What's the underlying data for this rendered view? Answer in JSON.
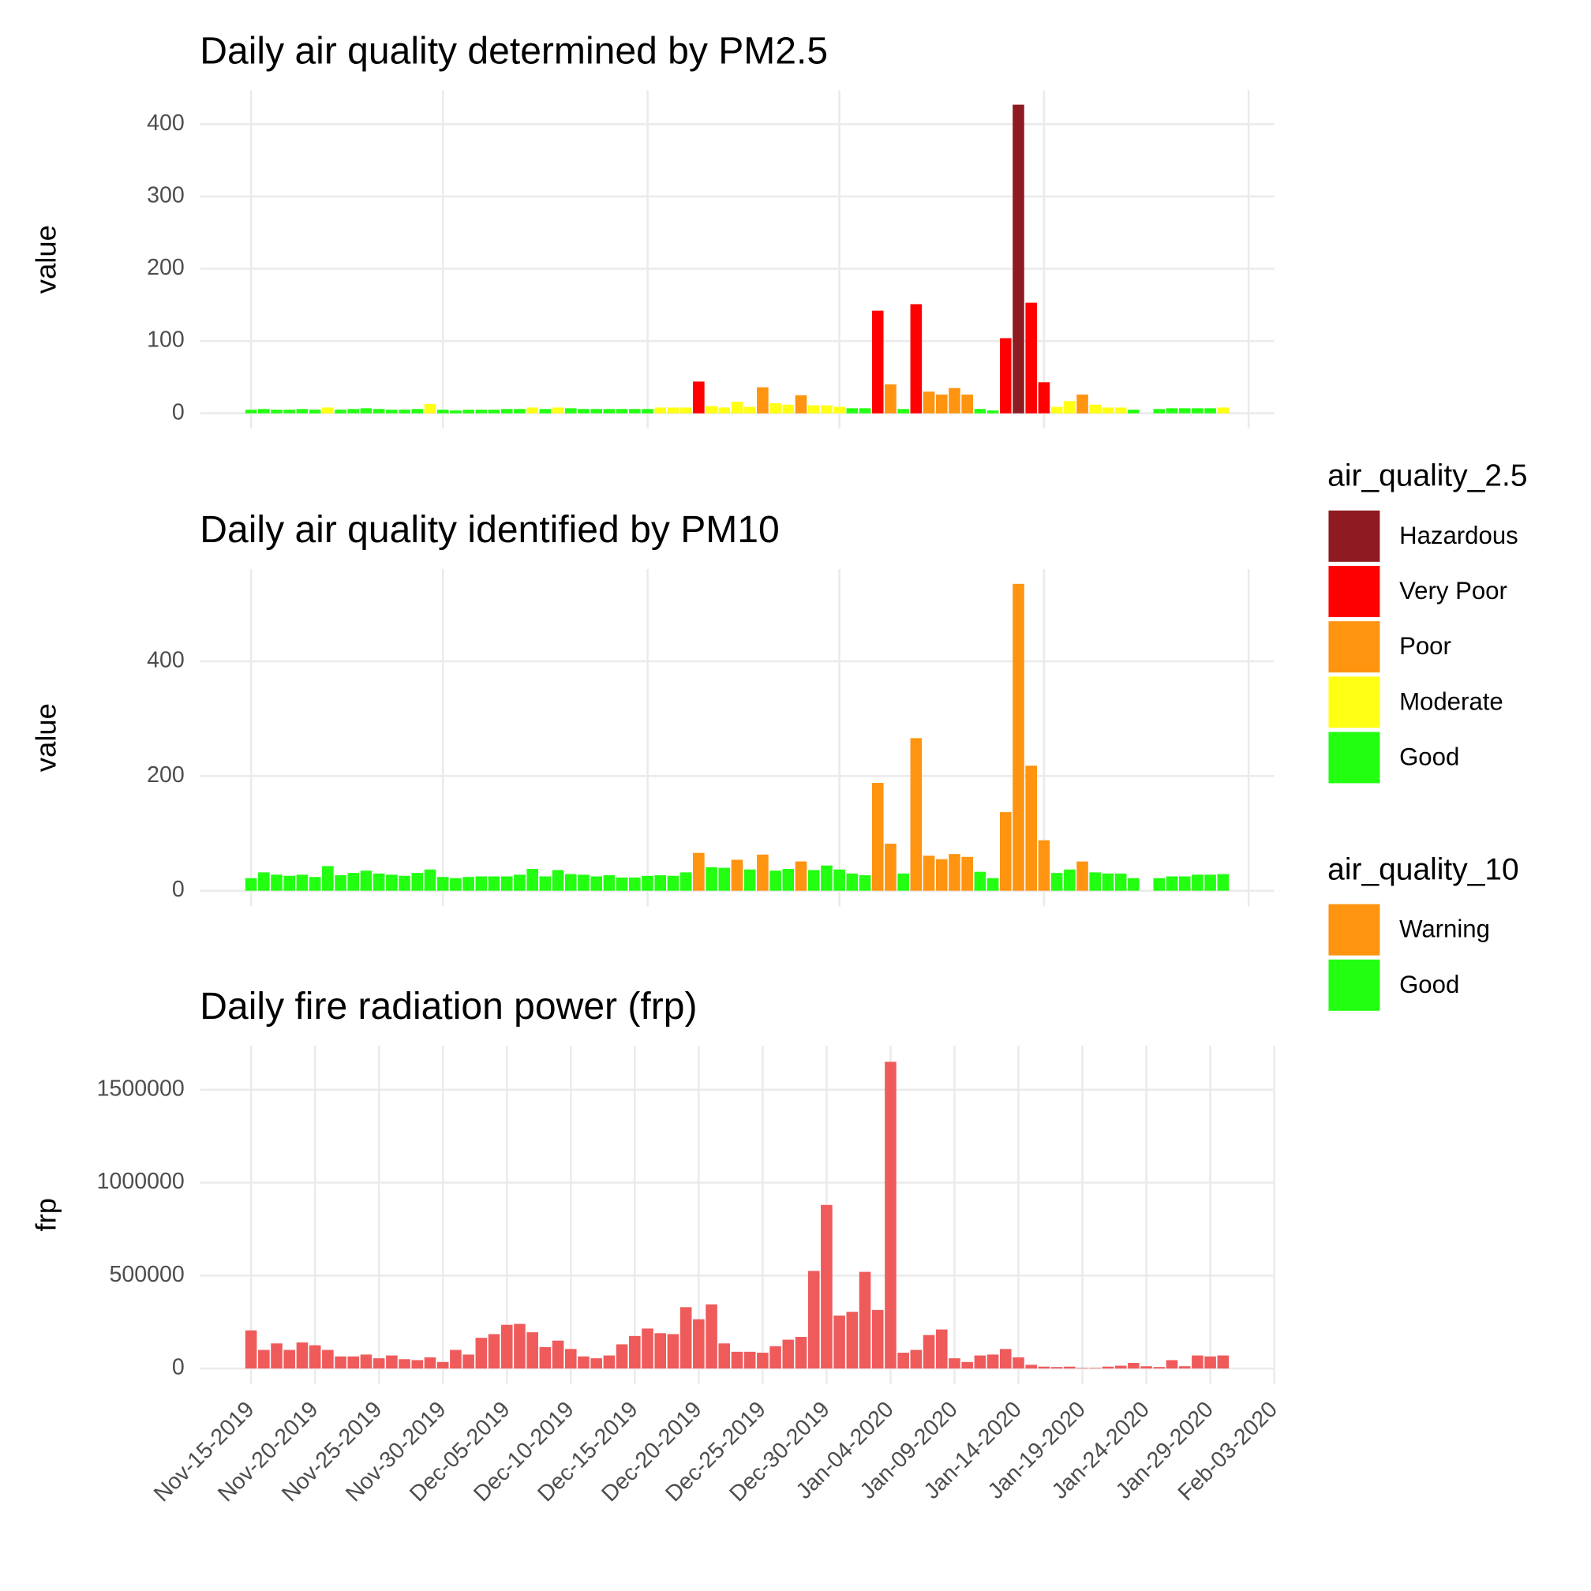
{
  "chart_data": [
    {
      "type": "bar",
      "title": "Daily air quality determined by PM2.5",
      "ylabel": "value",
      "x": [
        "2019-11-15",
        "2019-11-16",
        "2019-11-17",
        "2019-11-18",
        "2019-11-19",
        "2019-11-20",
        "2019-11-21",
        "2019-11-22",
        "2019-11-23",
        "2019-11-24",
        "2019-11-25",
        "2019-11-26",
        "2019-11-27",
        "2019-11-28",
        "2019-11-29",
        "2019-11-30",
        "2019-12-01",
        "2019-12-02",
        "2019-12-03",
        "2019-12-04",
        "2019-12-05",
        "2019-12-06",
        "2019-12-07",
        "2019-12-08",
        "2019-12-09",
        "2019-12-10",
        "2019-12-11",
        "2019-12-12",
        "2019-12-13",
        "2019-12-14",
        "2019-12-15",
        "2019-12-16",
        "2019-12-17",
        "2019-12-18",
        "2019-12-19",
        "2019-12-20",
        "2019-12-21",
        "2019-12-22",
        "2019-12-23",
        "2019-12-24",
        "2019-12-25",
        "2019-12-26",
        "2019-12-27",
        "2019-12-28",
        "2019-12-29",
        "2019-12-30",
        "2019-12-31",
        "2020-01-01",
        "2020-01-02",
        "2020-01-03",
        "2020-01-04",
        "2020-01-05",
        "2020-01-06",
        "2020-01-07",
        "2020-01-08",
        "2020-01-09",
        "2020-01-10",
        "2020-01-11",
        "2020-01-12",
        "2020-01-13",
        "2020-01-14",
        "2020-01-15",
        "2020-01-16",
        "2020-01-17",
        "2020-01-18",
        "2020-01-19",
        "2020-01-20",
        "2020-01-21",
        "2020-01-22",
        "2020-01-23",
        "2020-01-24",
        "2020-01-25",
        "2020-01-26",
        "2020-01-27",
        "2020-01-28",
        "2020-01-29",
        "2020-01-30"
      ],
      "values": [
        5,
        6,
        5,
        5,
        6,
        5,
        8,
        5,
        6,
        7,
        6,
        5,
        5,
        6,
        13,
        5,
        4,
        5,
        5,
        5,
        6,
        6,
        8,
        6,
        8,
        7,
        6,
        6,
        6,
        6,
        6,
        6,
        8,
        8,
        8,
        44,
        10,
        8,
        16,
        9,
        36,
        14,
        12,
        25,
        11,
        11,
        9,
        7,
        7,
        142,
        40,
        6,
        151,
        30,
        26,
        35,
        26,
        6,
        4,
        104,
        427,
        153,
        43,
        9,
        17,
        26,
        12,
        8,
        8,
        5,
        null,
        6,
        7,
        7,
        7,
        7,
        8
      ],
      "quality": [
        "Good",
        "Good",
        "Good",
        "Good",
        "Good",
        "Good",
        "Moderate",
        "Good",
        "Good",
        "Good",
        "Good",
        "Good",
        "Good",
        "Good",
        "Moderate",
        "Good",
        "Good",
        "Good",
        "Good",
        "Good",
        "Good",
        "Good",
        "Moderate",
        "Good",
        "Moderate",
        "Good",
        "Good",
        "Good",
        "Good",
        "Good",
        "Good",
        "Good",
        "Moderate",
        "Moderate",
        "Moderate",
        "Very Poor",
        "Moderate",
        "Moderate",
        "Moderate",
        "Moderate",
        "Poor",
        "Moderate",
        "Moderate",
        "Poor",
        "Moderate",
        "Moderate",
        "Moderate",
        "Good",
        "Good",
        "Very Poor",
        "Poor",
        "Good",
        "Very Poor",
        "Poor",
        "Poor",
        "Poor",
        "Poor",
        "Good",
        "Good",
        "Very Poor",
        "Hazardous",
        "Very Poor",
        "Very Poor",
        "Moderate",
        "Moderate",
        "Poor",
        "Moderate",
        "Moderate",
        "Moderate",
        "Good",
        null,
        "Good",
        "Good",
        "Good",
        "Good",
        "Good",
        "Moderate"
      ],
      "legend": {
        "title": "air_quality_2.5",
        "items": [
          {
            "name": "Hazardous",
            "color": "#8e1b22"
          },
          {
            "name": "Very Poor",
            "color": "#ff0000"
          },
          {
            "name": "Poor",
            "color": "#ff9410"
          },
          {
            "name": "Moderate",
            "color": "#ffff14"
          },
          {
            "name": "Good",
            "color": "#22ff11"
          }
        ]
      },
      "xlim": [
        "2019-11-11",
        "2020-02-03"
      ],
      "xticks": [
        "2019-11-15",
        "2019-11-30",
        "2019-12-16",
        "2019-12-31",
        "2020-01-16",
        "2020-02-01"
      ],
      "show_xtick_labels": false,
      "ylim": [
        -21,
        447
      ],
      "yticks": [
        0,
        100,
        200,
        300,
        400
      ],
      "grid": true
    },
    {
      "type": "bar",
      "title": "Daily air quality identified by PM10",
      "ylabel": "value",
      "x": [
        "2019-11-15",
        "2019-11-16",
        "2019-11-17",
        "2019-11-18",
        "2019-11-19",
        "2019-11-20",
        "2019-11-21",
        "2019-11-22",
        "2019-11-23",
        "2019-11-24",
        "2019-11-25",
        "2019-11-26",
        "2019-11-27",
        "2019-11-28",
        "2019-11-29",
        "2019-11-30",
        "2019-12-01",
        "2019-12-02",
        "2019-12-03",
        "2019-12-04",
        "2019-12-05",
        "2019-12-06",
        "2019-12-07",
        "2019-12-08",
        "2019-12-09",
        "2019-12-10",
        "2019-12-11",
        "2019-12-12",
        "2019-12-13",
        "2019-12-14",
        "2019-12-15",
        "2019-12-16",
        "2019-12-17",
        "2019-12-18",
        "2019-12-19",
        "2019-12-20",
        "2019-12-21",
        "2019-12-22",
        "2019-12-23",
        "2019-12-24",
        "2019-12-25",
        "2019-12-26",
        "2019-12-27",
        "2019-12-28",
        "2019-12-29",
        "2019-12-30",
        "2019-12-31",
        "2020-01-01",
        "2020-01-02",
        "2020-01-03",
        "2020-01-04",
        "2020-01-05",
        "2020-01-06",
        "2020-01-07",
        "2020-01-08",
        "2020-01-09",
        "2020-01-10",
        "2020-01-11",
        "2020-01-12",
        "2020-01-13",
        "2020-01-14",
        "2020-01-15",
        "2020-01-16",
        "2020-01-17",
        "2020-01-18",
        "2020-01-19",
        "2020-01-20",
        "2020-01-21",
        "2020-01-22",
        "2020-01-23",
        "2020-01-24",
        "2020-01-25",
        "2020-01-26",
        "2020-01-27",
        "2020-01-28",
        "2020-01-29",
        "2020-01-30"
      ],
      "values": [
        22,
        32,
        28,
        26,
        28,
        24,
        43,
        27,
        31,
        35,
        30,
        28,
        26,
        31,
        37,
        24,
        22,
        24,
        25,
        25,
        25,
        28,
        38,
        25,
        36,
        29,
        28,
        25,
        27,
        23,
        23,
        26,
        27,
        26,
        32,
        66,
        41,
        40,
        54,
        37,
        63,
        35,
        38,
        51,
        36,
        44,
        37,
        30,
        27,
        188,
        82,
        30,
        266,
        61,
        55,
        64,
        59,
        33,
        22,
        137,
        535,
        218,
        88,
        31,
        37,
        51,
        32,
        30,
        30,
        22,
        null,
        22,
        25,
        25,
        28,
        28,
        29
      ],
      "quality": [
        "Good",
        "Good",
        "Good",
        "Good",
        "Good",
        "Good",
        "Good",
        "Good",
        "Good",
        "Good",
        "Good",
        "Good",
        "Good",
        "Good",
        "Good",
        "Good",
        "Good",
        "Good",
        "Good",
        "Good",
        "Good",
        "Good",
        "Good",
        "Good",
        "Good",
        "Good",
        "Good",
        "Good",
        "Good",
        "Good",
        "Good",
        "Good",
        "Good",
        "Good",
        "Good",
        "Warning",
        "Good",
        "Good",
        "Warning",
        "Good",
        "Warning",
        "Good",
        "Good",
        "Warning",
        "Good",
        "Good",
        "Good",
        "Good",
        "Good",
        "Warning",
        "Warning",
        "Good",
        "Warning",
        "Warning",
        "Warning",
        "Warning",
        "Warning",
        "Good",
        "Good",
        "Warning",
        "Warning",
        "Warning",
        "Warning",
        "Good",
        "Good",
        "Warning",
        "Good",
        "Good",
        "Good",
        "Good",
        null,
        "Good",
        "Good",
        "Good",
        "Good",
        "Good",
        "Good"
      ],
      "legend": {
        "title": "air_quality_10",
        "items": [
          {
            "name": "Warning",
            "color": "#ff9410"
          },
          {
            "name": "Good",
            "color": "#22ff11"
          }
        ]
      },
      "xlim": [
        "2019-11-11",
        "2020-02-03"
      ],
      "xticks": [
        "2019-11-15",
        "2019-11-30",
        "2019-12-16",
        "2019-12-31",
        "2020-01-16",
        "2020-02-01"
      ],
      "show_xtick_labels": false,
      "ylim": [
        -27,
        561
      ],
      "yticks": [
        0,
        200,
        400
      ],
      "grid": true
    },
    {
      "type": "bar",
      "title": "Daily fire radiation power (frp)",
      "ylabel": "frp",
      "color": "#ef5b5b",
      "x": [
        "2019-11-15",
        "2019-11-16",
        "2019-11-17",
        "2019-11-18",
        "2019-11-19",
        "2019-11-20",
        "2019-11-21",
        "2019-11-22",
        "2019-11-23",
        "2019-11-24",
        "2019-11-25",
        "2019-11-26",
        "2019-11-27",
        "2019-11-28",
        "2019-11-29",
        "2019-11-30",
        "2019-12-01",
        "2019-12-02",
        "2019-12-03",
        "2019-12-04",
        "2019-12-05",
        "2019-12-06",
        "2019-12-07",
        "2019-12-08",
        "2019-12-09",
        "2019-12-10",
        "2019-12-11",
        "2019-12-12",
        "2019-12-13",
        "2019-12-14",
        "2019-12-15",
        "2019-12-16",
        "2019-12-17",
        "2019-12-18",
        "2019-12-19",
        "2019-12-20",
        "2019-12-21",
        "2019-12-22",
        "2019-12-23",
        "2019-12-24",
        "2019-12-25",
        "2019-12-26",
        "2019-12-27",
        "2019-12-28",
        "2019-12-29",
        "2019-12-30",
        "2019-12-31",
        "2020-01-01",
        "2020-01-02",
        "2020-01-03",
        "2020-01-04",
        "2020-01-05",
        "2020-01-06",
        "2020-01-07",
        "2020-01-08",
        "2020-01-09",
        "2020-01-10",
        "2020-01-11",
        "2020-01-12",
        "2020-01-13",
        "2020-01-14",
        "2020-01-15",
        "2020-01-16",
        "2020-01-17",
        "2020-01-18",
        "2020-01-19",
        "2020-01-20",
        "2020-01-21",
        "2020-01-22",
        "2020-01-23",
        "2020-01-24",
        "2020-01-25",
        "2020-01-26",
        "2020-01-27",
        "2020-01-28",
        "2020-01-29",
        "2020-01-30"
      ],
      "values": [
        205000,
        100000,
        135000,
        100000,
        140000,
        125000,
        100000,
        65000,
        65000,
        75000,
        55000,
        70000,
        50000,
        45000,
        60000,
        35000,
        100000,
        75000,
        165000,
        185000,
        235000,
        240000,
        195000,
        115000,
        150000,
        105000,
        65000,
        55000,
        70000,
        130000,
        175000,
        215000,
        190000,
        185000,
        330000,
        265000,
        345000,
        135000,
        90000,
        90000,
        85000,
        120000,
        155000,
        170000,
        525000,
        880000,
        285000,
        305000,
        520000,
        315000,
        1650000,
        85000,
        100000,
        180000,
        210000,
        55000,
        35000,
        70000,
        75000,
        105000,
        60000,
        20000,
        10000,
        8000,
        10000,
        3000,
        3000,
        10000,
        15000,
        30000,
        12000,
        8000,
        45000,
        12000,
        70000,
        65000,
        70000
      ],
      "xlim": [
        "2019-11-11",
        "2020-02-03"
      ],
      "xticks": [
        {
          "value": "2019-11-15",
          "label": "Nov-15-2019"
        },
        {
          "value": "2019-11-20",
          "label": "Nov-20-2019"
        },
        {
          "value": "2019-11-25",
          "label": "Nov-25-2019"
        },
        {
          "value": "2019-11-30",
          "label": "Nov-30-2019"
        },
        {
          "value": "2019-12-05",
          "label": "Dec-05-2019"
        },
        {
          "value": "2019-12-10",
          "label": "Dec-10-2019"
        },
        {
          "value": "2019-12-15",
          "label": "Dec-15-2019"
        },
        {
          "value": "2019-12-20",
          "label": "Dec-20-2019"
        },
        {
          "value": "2019-12-25",
          "label": "Dec-25-2019"
        },
        {
          "value": "2019-12-30",
          "label": "Dec-30-2019"
        },
        {
          "value": "2020-01-04",
          "label": "Jan-04-2020"
        },
        {
          "value": "2020-01-09",
          "label": "Jan-09-2020"
        },
        {
          "value": "2020-01-14",
          "label": "Jan-14-2020"
        },
        {
          "value": "2020-01-19",
          "label": "Jan-19-2020"
        },
        {
          "value": "2020-01-24",
          "label": "Jan-24-2020"
        },
        {
          "value": "2020-01-29",
          "label": "Jan-29-2020"
        },
        {
          "value": "2020-02-03",
          "label": "Feb-03-2020"
        }
      ],
      "show_xtick_labels": true,
      "ylim": [
        -83000,
        1737000
      ],
      "yticks": [
        0,
        500000,
        1000000,
        1500000
      ],
      "grid": true
    }
  ]
}
